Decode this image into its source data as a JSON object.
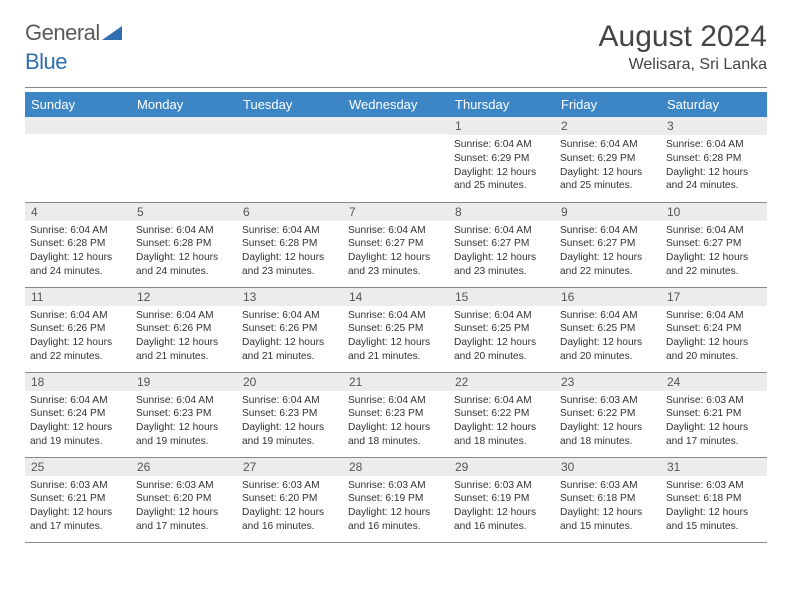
{
  "logo": {
    "part1": "General",
    "part2": "Blue"
  },
  "title": "August 2024",
  "location": "Welisara, Sri Lanka",
  "colors": {
    "header_bg": "#3d86c6",
    "header_fg": "#ffffff",
    "daynum_bg": "#ececec",
    "rule": "#888888",
    "logo_gray": "#5a5a5a",
    "logo_blue": "#2f6fb0"
  },
  "day_headers": [
    "Sunday",
    "Monday",
    "Tuesday",
    "Wednesday",
    "Thursday",
    "Friday",
    "Saturday"
  ],
  "weeks": [
    [
      null,
      null,
      null,
      null,
      {
        "n": "1",
        "sr": "6:04 AM",
        "ss": "6:29 PM",
        "dh": "12",
        "dm": "25"
      },
      {
        "n": "2",
        "sr": "6:04 AM",
        "ss": "6:29 PM",
        "dh": "12",
        "dm": "25"
      },
      {
        "n": "3",
        "sr": "6:04 AM",
        "ss": "6:28 PM",
        "dh": "12",
        "dm": "24"
      }
    ],
    [
      {
        "n": "4",
        "sr": "6:04 AM",
        "ss": "6:28 PM",
        "dh": "12",
        "dm": "24"
      },
      {
        "n": "5",
        "sr": "6:04 AM",
        "ss": "6:28 PM",
        "dh": "12",
        "dm": "24"
      },
      {
        "n": "6",
        "sr": "6:04 AM",
        "ss": "6:28 PM",
        "dh": "12",
        "dm": "23"
      },
      {
        "n": "7",
        "sr": "6:04 AM",
        "ss": "6:27 PM",
        "dh": "12",
        "dm": "23"
      },
      {
        "n": "8",
        "sr": "6:04 AM",
        "ss": "6:27 PM",
        "dh": "12",
        "dm": "23"
      },
      {
        "n": "9",
        "sr": "6:04 AM",
        "ss": "6:27 PM",
        "dh": "12",
        "dm": "22"
      },
      {
        "n": "10",
        "sr": "6:04 AM",
        "ss": "6:27 PM",
        "dh": "12",
        "dm": "22"
      }
    ],
    [
      {
        "n": "11",
        "sr": "6:04 AM",
        "ss": "6:26 PM",
        "dh": "12",
        "dm": "22"
      },
      {
        "n": "12",
        "sr": "6:04 AM",
        "ss": "6:26 PM",
        "dh": "12",
        "dm": "21"
      },
      {
        "n": "13",
        "sr": "6:04 AM",
        "ss": "6:26 PM",
        "dh": "12",
        "dm": "21"
      },
      {
        "n": "14",
        "sr": "6:04 AM",
        "ss": "6:25 PM",
        "dh": "12",
        "dm": "21"
      },
      {
        "n": "15",
        "sr": "6:04 AM",
        "ss": "6:25 PM",
        "dh": "12",
        "dm": "20"
      },
      {
        "n": "16",
        "sr": "6:04 AM",
        "ss": "6:25 PM",
        "dh": "12",
        "dm": "20"
      },
      {
        "n": "17",
        "sr": "6:04 AM",
        "ss": "6:24 PM",
        "dh": "12",
        "dm": "20"
      }
    ],
    [
      {
        "n": "18",
        "sr": "6:04 AM",
        "ss": "6:24 PM",
        "dh": "12",
        "dm": "19"
      },
      {
        "n": "19",
        "sr": "6:04 AM",
        "ss": "6:23 PM",
        "dh": "12",
        "dm": "19"
      },
      {
        "n": "20",
        "sr": "6:04 AM",
        "ss": "6:23 PM",
        "dh": "12",
        "dm": "19"
      },
      {
        "n": "21",
        "sr": "6:04 AM",
        "ss": "6:23 PM",
        "dh": "12",
        "dm": "18"
      },
      {
        "n": "22",
        "sr": "6:04 AM",
        "ss": "6:22 PM",
        "dh": "12",
        "dm": "18"
      },
      {
        "n": "23",
        "sr": "6:03 AM",
        "ss": "6:22 PM",
        "dh": "12",
        "dm": "18"
      },
      {
        "n": "24",
        "sr": "6:03 AM",
        "ss": "6:21 PM",
        "dh": "12",
        "dm": "17"
      }
    ],
    [
      {
        "n": "25",
        "sr": "6:03 AM",
        "ss": "6:21 PM",
        "dh": "12",
        "dm": "17"
      },
      {
        "n": "26",
        "sr": "6:03 AM",
        "ss": "6:20 PM",
        "dh": "12",
        "dm": "17"
      },
      {
        "n": "27",
        "sr": "6:03 AM",
        "ss": "6:20 PM",
        "dh": "12",
        "dm": "16"
      },
      {
        "n": "28",
        "sr": "6:03 AM",
        "ss": "6:19 PM",
        "dh": "12",
        "dm": "16"
      },
      {
        "n": "29",
        "sr": "6:03 AM",
        "ss": "6:19 PM",
        "dh": "12",
        "dm": "16"
      },
      {
        "n": "30",
        "sr": "6:03 AM",
        "ss": "6:18 PM",
        "dh": "12",
        "dm": "15"
      },
      {
        "n": "31",
        "sr": "6:03 AM",
        "ss": "6:18 PM",
        "dh": "12",
        "dm": "15"
      }
    ]
  ],
  "labels": {
    "sunrise": "Sunrise:",
    "sunset": "Sunset:",
    "daylight": "Daylight:",
    "hours": "hours",
    "and": "and",
    "minutes": "minutes."
  }
}
